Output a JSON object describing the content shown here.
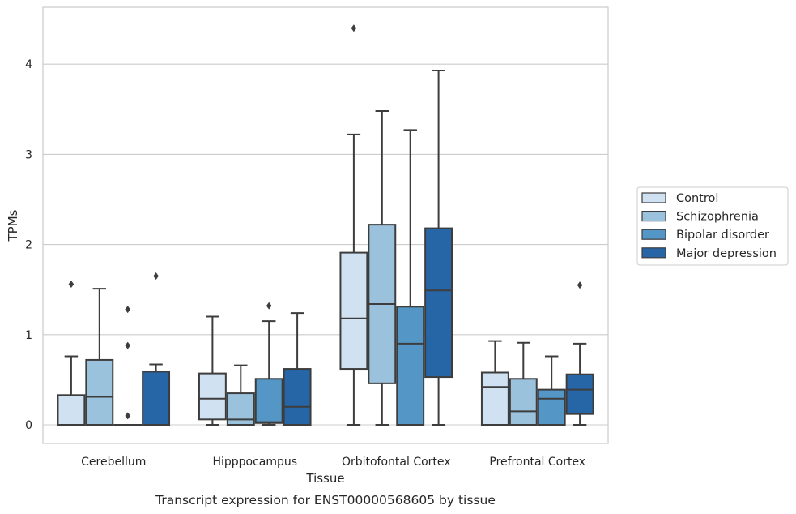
{
  "caption": "Transcript expression for ENST00000568605 by tissue",
  "chart_data": {
    "type": "box",
    "title": "",
    "xlabel": "Tissue",
    "ylabel": "TPMs",
    "ylim": [
      -0.2,
      4.63
    ],
    "yticks": [
      0,
      1,
      2,
      3,
      4
    ],
    "grid": "horizontal",
    "legend_position": "right",
    "categories": [
      "Cerebellum",
      "Hipppocampus",
      "Orbitofontal Cortex",
      "Prefrontal Cortex"
    ],
    "series": [
      {
        "name": "Control",
        "color": "#d0e1f2",
        "boxes": [
          {
            "whislo": 0,
            "q1": 0,
            "med": 0,
            "q3": 0.33,
            "whishi": 0.76,
            "fliers": [
              1.56
            ]
          },
          {
            "whislo": 0,
            "q1": 0.06,
            "med": 0.29,
            "q3": 0.57,
            "whishi": 1.2,
            "fliers": []
          },
          {
            "whislo": 0,
            "q1": 0.62,
            "med": 1.18,
            "q3": 1.91,
            "whishi": 3.22,
            "fliers": [
              4.4
            ]
          },
          {
            "whislo": 0,
            "q1": 0,
            "med": 0.42,
            "q3": 0.58,
            "whishi": 0.93,
            "fliers": []
          }
        ]
      },
      {
        "name": "Schizophrenia",
        "color": "#9ac2dd",
        "boxes": [
          {
            "whislo": 0,
            "q1": 0,
            "med": 0.31,
            "q3": 0.72,
            "whishi": 1.51,
            "fliers": []
          },
          {
            "whislo": 0,
            "q1": 0,
            "med": 0.06,
            "q3": 0.35,
            "whishi": 0.66,
            "fliers": []
          },
          {
            "whislo": 0,
            "q1": 0.46,
            "med": 1.34,
            "q3": 2.22,
            "whishi": 3.48,
            "fliers": []
          },
          {
            "whislo": 0,
            "q1": 0,
            "med": 0.15,
            "q3": 0.51,
            "whishi": 0.91,
            "fliers": []
          }
        ]
      },
      {
        "name": "Bipolar disorder",
        "color": "#5497c6",
        "boxes": [
          {
            "whislo": 0,
            "q1": 0,
            "med": 0,
            "q3": 0,
            "whishi": 0,
            "fliers": [
              1.28,
              0.88,
              0.1
            ]
          },
          {
            "whislo": 0,
            "q1": 0.02,
            "med": 0.03,
            "q3": 0.51,
            "whishi": 1.15,
            "fliers": [
              1.32
            ]
          },
          {
            "whislo": 0,
            "q1": 0,
            "med": 0.9,
            "q3": 1.31,
            "whishi": 3.27,
            "fliers": []
          },
          {
            "whislo": 0,
            "q1": 0,
            "med": 0.29,
            "q3": 0.39,
            "whishi": 0.76,
            "fliers": []
          }
        ]
      },
      {
        "name": "Major depression",
        "color": "#2666a6",
        "boxes": [
          {
            "whislo": 0,
            "q1": 0,
            "med": 0,
            "q3": 0.59,
            "whishi": 0.67,
            "fliers": [
              1.65
            ]
          },
          {
            "whislo": 0,
            "q1": 0,
            "med": 0.2,
            "q3": 0.62,
            "whishi": 1.24,
            "fliers": []
          },
          {
            "whislo": 0,
            "q1": 0.53,
            "med": 1.49,
            "q3": 2.18,
            "whishi": 3.93,
            "fliers": []
          },
          {
            "whislo": 0,
            "q1": 0.12,
            "med": 0.39,
            "q3": 0.56,
            "whishi": 0.9,
            "fliers": [
              1.55
            ]
          }
        ]
      }
    ]
  }
}
